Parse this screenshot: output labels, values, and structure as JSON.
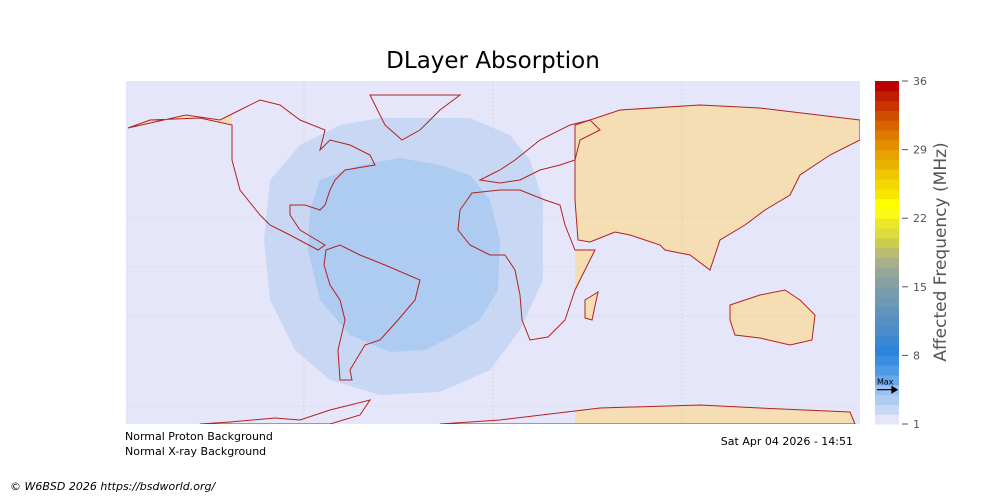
{
  "title": "DLayer Absorption",
  "colorbar": {
    "label": "Affected Frequency (MHz)",
    "min": 1,
    "max": 36,
    "ticks": [
      "1",
      "8",
      "15",
      "22",
      "29",
      "36"
    ],
    "tick_values": [
      1,
      8,
      15,
      22,
      29,
      36
    ],
    "max_marker_label": "Max",
    "max_marker_value": 4.5,
    "colors": [
      "#e6e6fa",
      "#c8d8f4",
      "#aecbf1",
      "#9cc1ee",
      "#6aa8e8",
      "#4f9ae4",
      "#3a8ee0",
      "#2a86dc",
      "#3a88d2",
      "#4a8dca",
      "#568fc2",
      "#6294bc",
      "#6e99b4",
      "#7a9cac",
      "#88a0a4",
      "#96a89a",
      "#a6b18c",
      "#b8bd72",
      "#cccc50",
      "#dcdc3c",
      "#ece828",
      "#fafa14",
      "#ffff00",
      "#f8e600",
      "#f4d600",
      "#f0c600",
      "#eab200",
      "#e6a200",
      "#e28e00",
      "#de7a00",
      "#d86400",
      "#d04c00",
      "#c83400",
      "#c01e00",
      "#bc0000"
    ]
  },
  "map": {
    "ocean_color": "#e6e6fa",
    "land_color": "#f5deb3",
    "coast_color": "#b22222",
    "absorption_outer_color": "#c8d8f4",
    "absorption_inner_color": "#aecbf1"
  },
  "status": {
    "proton": "Normal Proton Background",
    "xray": "Normal X-ray Background",
    "timestamp": "Sat Apr 04 2026 - 14:51"
  },
  "footer": {
    "copyright": "© W6BSD 2026 https://bsdworld.org/"
  }
}
